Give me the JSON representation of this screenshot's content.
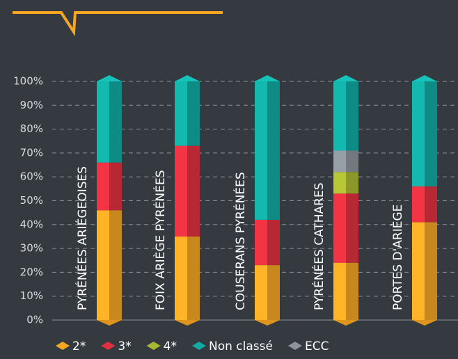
{
  "chart_data": {
    "type": "bar",
    "stacked": true,
    "categories": [
      "PYRÉNÉES ARIÉGEOISES",
      "FOIX ARIÈGE PYRÉNÉES",
      "COUSERANS PYRÉNÉES",
      "PYRÉNÉES CATHARES",
      "PORTES D'ARIÈGE"
    ],
    "series": [
      {
        "name": "2*",
        "color": "#f5a623",
        "values": [
          46,
          35,
          23,
          24,
          41
        ]
      },
      {
        "name": "3*",
        "color": "#e0303f",
        "values": [
          20,
          38,
          19,
          29,
          15
        ]
      },
      {
        "name": "4*",
        "color": "#a9b832",
        "values": [
          0,
          0,
          0,
          9,
          0
        ]
      },
      {
        "name": "Non classé",
        "color": "#12aaa2",
        "values": [
          34,
          27,
          58,
          29,
          44
        ]
      },
      {
        "name": "ECC",
        "color": "#8c939b",
        "values": [
          0,
          0,
          0,
          9,
          0
        ]
      }
    ],
    "ylim": [
      0,
      100
    ],
    "yticks": [
      {
        "value": 0,
        "label": "0%"
      },
      {
        "value": 10,
        "label": "10%"
      },
      {
        "value": 20,
        "label": "20%"
      },
      {
        "value": 30,
        "label": "30%"
      },
      {
        "value": 40,
        "label": "40%"
      },
      {
        "value": 50,
        "label": "50%"
      },
      {
        "value": 60,
        "label": "60%"
      },
      {
        "value": 70,
        "label": "70%"
      },
      {
        "value": 80,
        "label": "80%"
      },
      {
        "value": 90,
        "label": "90%"
      },
      {
        "value": 100,
        "label": "100%"
      }
    ],
    "grid": true
  }
}
